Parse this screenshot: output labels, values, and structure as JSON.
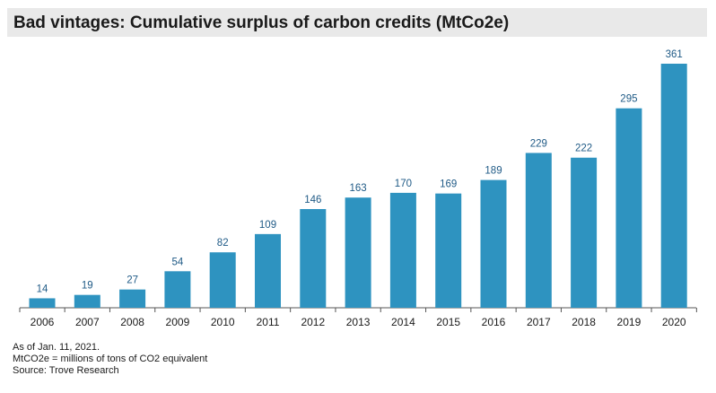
{
  "title": "Bad vintages: Cumulative surplus of carbon credits (MtCo2e)",
  "chart_data": {
    "type": "bar",
    "categories": [
      "2006",
      "2007",
      "2008",
      "2009",
      "2010",
      "2011",
      "2012",
      "2013",
      "2014",
      "2015",
      "2016",
      "2017",
      "2018",
      "2019",
      "2020"
    ],
    "values": [
      14,
      19,
      27,
      54,
      82,
      109,
      146,
      163,
      170,
      169,
      189,
      229,
      222,
      295,
      361
    ],
    "data_labels": [
      "14",
      "19",
      "27",
      "54",
      "82",
      "109",
      "146",
      "163",
      "170",
      "169",
      "189",
      "229",
      "222",
      "295",
      "361"
    ],
    "ylim": [
      0,
      361
    ],
    "grid": false,
    "bar_color": "#2e93c0",
    "label_color": "#1f5a86"
  },
  "notes": {
    "line1": "As of Jan. 11, 2021.",
    "line2": "MtCO2e =  millions of tons of CO2 equivalent",
    "line3": "Source: Trove Research"
  }
}
